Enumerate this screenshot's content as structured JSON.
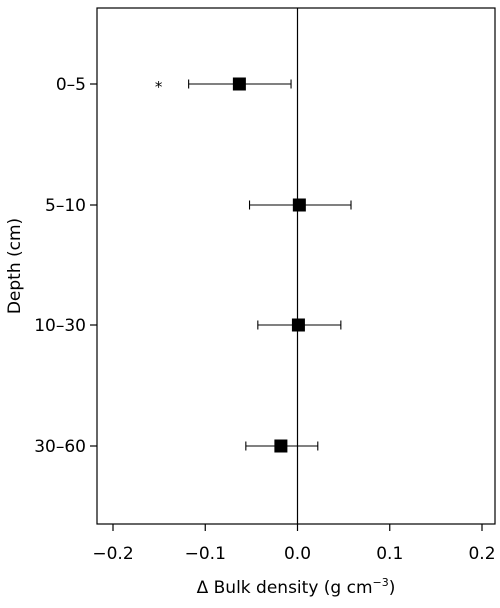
{
  "chart_data": {
    "type": "scatter",
    "orientation": "horizontal",
    "xlabel_prefix": "Δ Bulk density (g cm",
    "xlabel_exponent": "−3",
    "xlabel_suffix": ")",
    "ylabel": "Depth (cm)",
    "xlim": [
      -0.22,
      0.22
    ],
    "x_ticks": [
      -0.2,
      -0.1,
      0.0,
      0.1,
      0.2
    ],
    "x_tick_labels": [
      "−0.2",
      "−0.1",
      "0.0",
      "0.1",
      "0.2"
    ],
    "reference_line_x": 0.0,
    "grid": false,
    "categories": [
      "0–5",
      "5–10",
      "10–30",
      "30–60"
    ],
    "points": [
      {
        "category": "0–5",
        "value": -0.063,
        "err_low": -0.118,
        "err_high": -0.007,
        "annotation": "*"
      },
      {
        "category": "5–10",
        "value": 0.002,
        "err_low": -0.052,
        "err_high": 0.058,
        "annotation": ""
      },
      {
        "category": "10–30",
        "value": 0.001,
        "err_low": -0.043,
        "err_high": 0.047,
        "annotation": ""
      },
      {
        "category": "30–60",
        "value": -0.018,
        "err_low": -0.056,
        "err_high": 0.022,
        "annotation": ""
      }
    ]
  }
}
